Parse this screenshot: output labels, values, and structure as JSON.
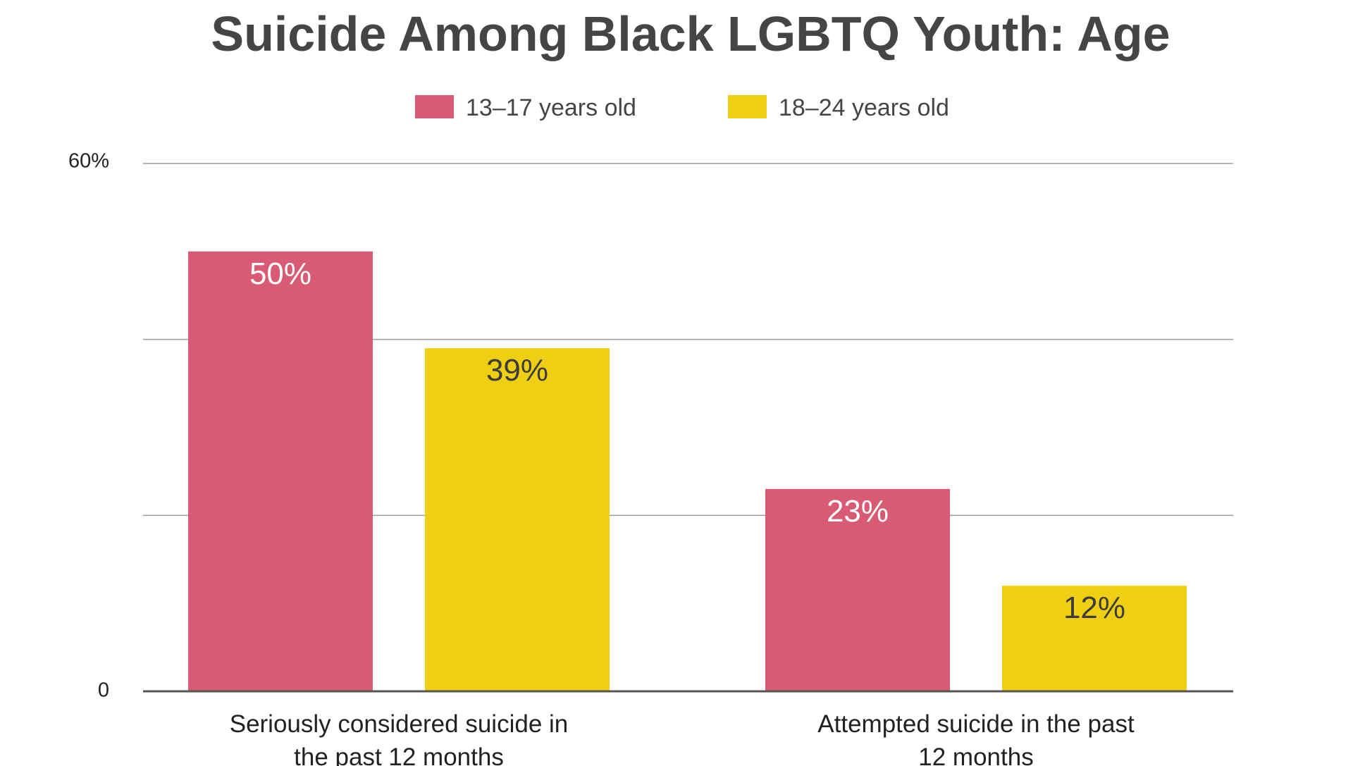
{
  "chart_data": {
    "type": "bar",
    "title": "Suicide Among Black LGBTQ Youth: Age",
    "categories": [
      [
        "Seriously considered suicide in",
        "the past 12 months"
      ],
      [
        "Attempted suicide in the past",
        "12 months"
      ]
    ],
    "series": [
      {
        "name": "13–17 years old",
        "color": "#d95b73",
        "label_color": "#ffffff",
        "values": [
          50,
          23
        ],
        "labels": [
          "50%",
          "23%"
        ]
      },
      {
        "name": "18–24 years old",
        "color": "#eecf13",
        "label_color": "#3d3d3d",
        "values": [
          39,
          12
        ],
        "labels": [
          "39%",
          "12%"
        ]
      }
    ],
    "ylim": [
      0,
      60
    ],
    "y_tick_labels": [
      {
        "value": 0,
        "label": "0"
      },
      {
        "value": 60,
        "label": "60%"
      }
    ],
    "gridlines": [
      20,
      40,
      60
    ],
    "legend_position": "top-center",
    "xlabel": "",
    "ylabel": ""
  }
}
